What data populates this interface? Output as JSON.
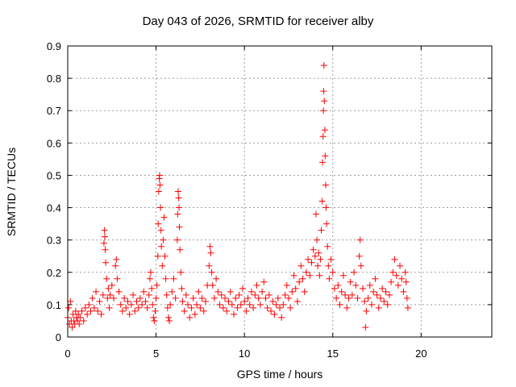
{
  "chart_data": {
    "type": "scatter",
    "title": "Day 043 of 2026, SRMTID for receiver alby",
    "xlabel": "GPS time / hours",
    "ylabel": "SRMTID / TECUs",
    "xlim": [
      0,
      24
    ],
    "ylim": [
      0,
      0.9
    ],
    "xticks": [
      0,
      5,
      10,
      15,
      20
    ],
    "xtick_labels": [
      "0",
      "5",
      "10",
      "15",
      "20"
    ],
    "yticks": [
      0,
      0.1,
      0.2,
      0.3,
      0.4,
      0.5,
      0.6,
      0.7,
      0.8,
      0.9
    ],
    "ytick_labels": [
      "0",
      "0.1",
      "0.2",
      "0.3",
      "0.4",
      "0.5",
      "0.6",
      "0.7",
      "0.8",
      "0.9"
    ],
    "grid": true,
    "marker": "+",
    "color": "#ff0000",
    "series": [
      {
        "name": "SRMTID",
        "points": [
          [
            0.0,
            0.06
          ],
          [
            0.05,
            0.09
          ],
          [
            0.1,
            0.04
          ],
          [
            0.15,
            0.11
          ],
          [
            0.2,
            0.05
          ],
          [
            0.25,
            0.03
          ],
          [
            0.3,
            0.07
          ],
          [
            0.35,
            0.05
          ],
          [
            0.4,
            0.04
          ],
          [
            0.45,
            0.08
          ],
          [
            0.5,
            0.06
          ],
          [
            0.55,
            0.05
          ],
          [
            0.6,
            0.07
          ],
          [
            0.65,
            0.04
          ],
          [
            0.7,
            0.06
          ],
          [
            0.8,
            0.08
          ],
          [
            0.9,
            0.05
          ],
          [
            1.0,
            0.09
          ],
          [
            1.1,
            0.07
          ],
          [
            1.2,
            0.1
          ],
          [
            1.3,
            0.08
          ],
          [
            1.4,
            0.12
          ],
          [
            1.5,
            0.09
          ],
          [
            1.6,
            0.14
          ],
          [
            1.7,
            0.08
          ],
          [
            1.8,
            0.11
          ],
          [
            1.9,
            0.07
          ],
          [
            2.0,
            0.13
          ],
          [
            2.05,
            0.29
          ],
          [
            2.08,
            0.33
          ],
          [
            2.1,
            0.31
          ],
          [
            2.12,
            0.27
          ],
          [
            2.15,
            0.23
          ],
          [
            2.2,
            0.18
          ],
          [
            2.25,
            0.12
          ],
          [
            2.3,
            0.15
          ],
          [
            2.35,
            0.09
          ],
          [
            2.4,
            0.13
          ],
          [
            2.5,
            0.16
          ],
          [
            2.6,
            0.12
          ],
          [
            2.7,
            0.22
          ],
          [
            2.75,
            0.24
          ],
          [
            2.8,
            0.18
          ],
          [
            2.9,
            0.14
          ],
          [
            3.0,
            0.1
          ],
          [
            3.1,
            0.08
          ],
          [
            3.2,
            0.12
          ],
          [
            3.3,
            0.09
          ],
          [
            3.4,
            0.11
          ],
          [
            3.5,
            0.07
          ],
          [
            3.6,
            0.1
          ],
          [
            3.7,
            0.13
          ],
          [
            3.8,
            0.08
          ],
          [
            3.9,
            0.11
          ],
          [
            4.0,
            0.09
          ],
          [
            4.1,
            0.12
          ],
          [
            4.2,
            0.1
          ],
          [
            4.3,
            0.14
          ],
          [
            4.4,
            0.11
          ],
          [
            4.5,
            0.09
          ],
          [
            4.6,
            0.13
          ],
          [
            4.65,
            0.18
          ],
          [
            4.7,
            0.2
          ],
          [
            4.75,
            0.15
          ],
          [
            4.8,
            0.1
          ],
          [
            4.85,
            0.06
          ],
          [
            4.9,
            0.05
          ],
          [
            4.95,
            0.08
          ],
          [
            5.0,
            0.12
          ],
          [
            5.05,
            0.16
          ],
          [
            5.1,
            0.25
          ],
          [
            5.12,
            0.35
          ],
          [
            5.15,
            0.45
          ],
          [
            5.18,
            0.49
          ],
          [
            5.2,
            0.5
          ],
          [
            5.22,
            0.47
          ],
          [
            5.25,
            0.4
          ],
          [
            5.28,
            0.33
          ],
          [
            5.3,
            0.28
          ],
          [
            5.35,
            0.22
          ],
          [
            5.4,
            0.3
          ],
          [
            5.45,
            0.37
          ],
          [
            5.5,
            0.25
          ],
          [
            5.55,
            0.18
          ],
          [
            5.6,
            0.13
          ],
          [
            5.65,
            0.09
          ],
          [
            5.7,
            0.06
          ],
          [
            5.75,
            0.05
          ],
          [
            5.8,
            0.1
          ],
          [
            5.9,
            0.14
          ],
          [
            6.0,
            0.18
          ],
          [
            6.1,
            0.12
          ],
          [
            6.2,
            0.3
          ],
          [
            6.22,
            0.38
          ],
          [
            6.25,
            0.45
          ],
          [
            6.28,
            0.43
          ],
          [
            6.3,
            0.4
          ],
          [
            6.32,
            0.34
          ],
          [
            6.35,
            0.27
          ],
          [
            6.4,
            0.2
          ],
          [
            6.45,
            0.15
          ],
          [
            6.5,
            0.11
          ],
          [
            6.6,
            0.08
          ],
          [
            6.7,
            0.13
          ],
          [
            6.8,
            0.1
          ],
          [
            6.9,
            0.06
          ],
          [
            7.0,
            0.09
          ],
          [
            7.1,
            0.12
          ],
          [
            7.2,
            0.07
          ],
          [
            7.3,
            0.1
          ],
          [
            7.4,
            0.14
          ],
          [
            7.5,
            0.09
          ],
          [
            7.6,
            0.12
          ],
          [
            7.7,
            0.08
          ],
          [
            7.8,
            0.11
          ],
          [
            7.9,
            0.16
          ],
          [
            8.0,
            0.22
          ],
          [
            8.05,
            0.28
          ],
          [
            8.1,
            0.26
          ],
          [
            8.15,
            0.2
          ],
          [
            8.2,
            0.16
          ],
          [
            8.3,
            0.12
          ],
          [
            8.4,
            0.18
          ],
          [
            8.5,
            0.14
          ],
          [
            8.6,
            0.1
          ],
          [
            8.7,
            0.13
          ],
          [
            8.8,
            0.09
          ],
          [
            8.9,
            0.12
          ],
          [
            9.0,
            0.08
          ],
          [
            9.1,
            0.11
          ],
          [
            9.2,
            0.14
          ],
          [
            9.3,
            0.1
          ],
          [
            9.4,
            0.07
          ],
          [
            9.5,
            0.12
          ],
          [
            9.6,
            0.09
          ],
          [
            9.7,
            0.13
          ],
          [
            9.8,
            0.1
          ],
          [
            9.9,
            0.15
          ],
          [
            10.0,
            0.11
          ],
          [
            10.1,
            0.08
          ],
          [
            10.2,
            0.12
          ],
          [
            10.3,
            0.1
          ],
          [
            10.4,
            0.14
          ],
          [
            10.5,
            0.09
          ],
          [
            10.6,
            0.13
          ],
          [
            10.7,
            0.16
          ],
          [
            10.8,
            0.12
          ],
          [
            10.9,
            0.1
          ],
          [
            11.0,
            0.14
          ],
          [
            11.1,
            0.17
          ],
          [
            11.2,
            0.12
          ],
          [
            11.3,
            0.09
          ],
          [
            11.4,
            0.13
          ],
          [
            11.5,
            0.08
          ],
          [
            11.6,
            0.11
          ],
          [
            11.7,
            0.07
          ],
          [
            11.8,
            0.1
          ],
          [
            11.9,
            0.12
          ],
          [
            12.0,
            0.09
          ],
          [
            12.1,
            0.06
          ],
          [
            12.2,
            0.1
          ],
          [
            12.3,
            0.13
          ],
          [
            12.4,
            0.16
          ],
          [
            12.5,
            0.12
          ],
          [
            12.6,
            0.09
          ],
          [
            12.7,
            0.14
          ],
          [
            12.8,
            0.19
          ],
          [
            12.9,
            0.15
          ],
          [
            13.0,
            0.11
          ],
          [
            13.1,
            0.17
          ],
          [
            13.2,
            0.22
          ],
          [
            13.3,
            0.18
          ],
          [
            13.4,
            0.14
          ],
          [
            13.5,
            0.2
          ],
          [
            13.6,
            0.24
          ],
          [
            13.7,
            0.19
          ],
          [
            13.8,
            0.23
          ],
          [
            13.9,
            0.27
          ],
          [
            14.0,
            0.25
          ],
          [
            14.05,
            0.38
          ],
          [
            14.1,
            0.3
          ],
          [
            14.15,
            0.22
          ],
          [
            14.2,
            0.26
          ],
          [
            14.25,
            0.19
          ],
          [
            14.3,
            0.24
          ],
          [
            14.35,
            0.33
          ],
          [
            14.4,
            0.42
          ],
          [
            14.42,
            0.54
          ],
          [
            14.45,
            0.62
          ],
          [
            14.47,
            0.7
          ],
          [
            14.48,
            0.76
          ],
          [
            14.5,
            0.84
          ],
          [
            14.52,
            0.73
          ],
          [
            14.55,
            0.64
          ],
          [
            14.57,
            0.56
          ],
          [
            14.6,
            0.47
          ],
          [
            14.62,
            0.4
          ],
          [
            14.65,
            0.35
          ],
          [
            14.7,
            0.28
          ],
          [
            14.75,
            0.22
          ],
          [
            14.8,
            0.18
          ],
          [
            14.9,
            0.24
          ],
          [
            15.0,
            0.2
          ],
          [
            15.1,
            0.15
          ],
          [
            15.2,
            0.12
          ],
          [
            15.3,
            0.16
          ],
          [
            15.4,
            0.1
          ],
          [
            15.5,
            0.14
          ],
          [
            15.6,
            0.19
          ],
          [
            15.7,
            0.13
          ],
          [
            15.8,
            0.09
          ],
          [
            15.9,
            0.12
          ],
          [
            16.0,
            0.17
          ],
          [
            16.1,
            0.13
          ],
          [
            16.2,
            0.2
          ],
          [
            16.3,
            0.16
          ],
          [
            16.4,
            0.12
          ],
          [
            16.5,
            0.25
          ],
          [
            16.55,
            0.3
          ],
          [
            16.6,
            0.22
          ],
          [
            16.7,
            0.15
          ],
          [
            16.8,
            0.11
          ],
          [
            16.85,
            0.03
          ],
          [
            16.9,
            0.08
          ],
          [
            17.0,
            0.12
          ],
          [
            17.1,
            0.16
          ],
          [
            17.2,
            0.1
          ],
          [
            17.3,
            0.14
          ],
          [
            17.4,
            0.18
          ],
          [
            17.5,
            0.13
          ],
          [
            17.6,
            0.09
          ],
          [
            17.7,
            0.12
          ],
          [
            17.8,
            0.15
          ],
          [
            17.9,
            0.11
          ],
          [
            18.0,
            0.14
          ],
          [
            18.1,
            0.1
          ],
          [
            18.2,
            0.13
          ],
          [
            18.3,
            0.17
          ],
          [
            18.4,
            0.2
          ],
          [
            18.5,
            0.24
          ],
          [
            18.6,
            0.19
          ],
          [
            18.7,
            0.16
          ],
          [
            18.8,
            0.22
          ],
          [
            18.9,
            0.18
          ],
          [
            19.0,
            0.14
          ],
          [
            19.1,
            0.2
          ],
          [
            19.15,
            0.17
          ],
          [
            19.2,
            0.12
          ],
          [
            19.25,
            0.09
          ]
        ]
      }
    ]
  }
}
